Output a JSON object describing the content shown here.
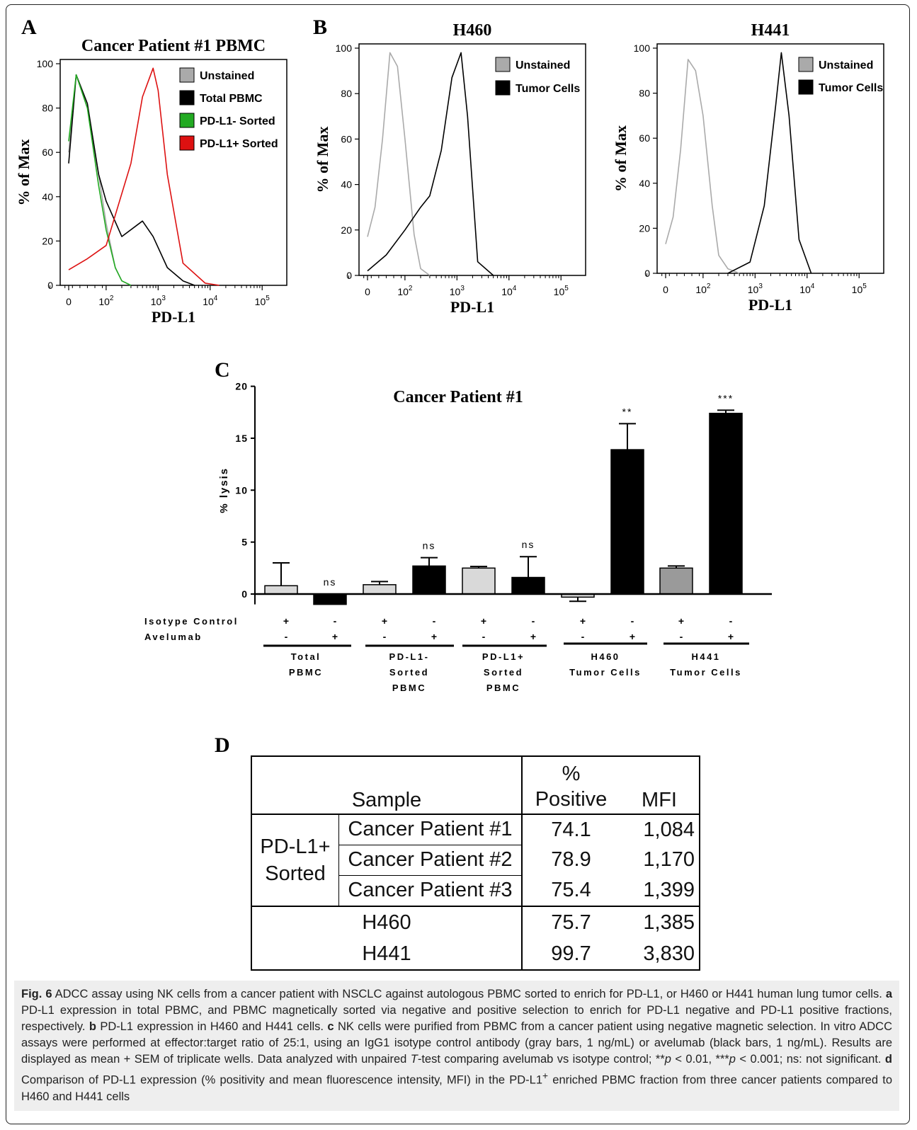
{
  "panels": {
    "a": "A",
    "b": "B",
    "c": "C",
    "d": "D"
  },
  "chart_data": [
    {
      "type": "line",
      "id": "A",
      "title": "Cancer Patient #1 PBMC",
      "xlabel": "PD-L1",
      "ylabel": "% of Max",
      "x_scale": "biexponential",
      "ylim": [
        0,
        100
      ],
      "yticks": [
        "0",
        "20",
        "40",
        "60",
        "80",
        "100"
      ],
      "xticks": [
        {
          "base": "0",
          "exp": ""
        },
        {
          "base": "10",
          "exp": "2"
        },
        {
          "base": "10",
          "exp": "3"
        },
        {
          "base": "10",
          "exp": "4"
        },
        {
          "base": "10",
          "exp": "5"
        }
      ],
      "legend": [
        {
          "name": "Unstained",
          "color": "#aaaaaa"
        },
        {
          "name": "Total PBMC",
          "color": "#000000"
        },
        {
          "name": "PD-L1- Sorted",
          "color": "#22aa22"
        },
        {
          "name": "PD-L1+ Sorted",
          "color": "#dd1111"
        }
      ],
      "series": [
        {
          "name": "Unstained",
          "x": [
            0,
            20,
            50,
            80,
            100,
            150,
            200,
            300
          ],
          "y": [
            60,
            95,
            80,
            50,
            28,
            8,
            2,
            0
          ]
        },
        {
          "name": "Total PBMC",
          "x": [
            0,
            20,
            50,
            80,
            100,
            200,
            500,
            800,
            1500,
            3000,
            5000
          ],
          "y": [
            55,
            95,
            82,
            50,
            38,
            22,
            29,
            22,
            8,
            2,
            0
          ]
        },
        {
          "name": "PD-L1- Sorted",
          "x": [
            0,
            20,
            50,
            80,
            100,
            150,
            200,
            300
          ],
          "y": [
            65,
            95,
            80,
            45,
            25,
            8,
            2,
            0
          ]
        },
        {
          "name": "PD-L1+ Sorted",
          "x": [
            0,
            50,
            100,
            300,
            500,
            800,
            1000,
            1500,
            3000,
            8000,
            15000
          ],
          "y": [
            7,
            12,
            18,
            55,
            85,
            98,
            88,
            50,
            10,
            1,
            0
          ]
        }
      ]
    },
    {
      "type": "line",
      "id": "B1",
      "title": "H460",
      "xlabel": "PD-L1",
      "ylabel": "% of Max",
      "x_scale": "biexponential",
      "ylim": [
        0,
        100
      ],
      "yticks": [
        "0",
        "20",
        "40",
        "60",
        "80",
        "100"
      ],
      "xticks": [
        {
          "base": "0",
          "exp": ""
        },
        {
          "base": "10",
          "exp": "2"
        },
        {
          "base": "10",
          "exp": "3"
        },
        {
          "base": "10",
          "exp": "4"
        },
        {
          "base": "10",
          "exp": "5"
        }
      ],
      "legend": [
        {
          "name": "Unstained",
          "color": "#aaaaaa"
        },
        {
          "name": "Tumor Cells",
          "color": "#000000"
        }
      ],
      "series": [
        {
          "name": "Unstained",
          "x": [
            0,
            20,
            40,
            60,
            80,
            100,
            150,
            200,
            300
          ],
          "y": [
            17,
            30,
            60,
            98,
            92,
            60,
            18,
            3,
            0
          ]
        },
        {
          "name": "Tumor Cells",
          "x": [
            0,
            50,
            100,
            200,
            300,
            500,
            800,
            1200,
            1600,
            2500,
            5000
          ],
          "y": [
            2,
            9,
            20,
            30,
            35,
            55,
            87,
            98,
            70,
            6,
            0
          ]
        }
      ]
    },
    {
      "type": "line",
      "id": "B2",
      "title": "H441",
      "xlabel": "PD-L1",
      "ylabel": "% of Max",
      "x_scale": "biexponential",
      "ylim": [
        0,
        100
      ],
      "yticks": [
        "0",
        "20",
        "40",
        "60",
        "80",
        "100"
      ],
      "xticks": [
        {
          "base": "0",
          "exp": ""
        },
        {
          "base": "10",
          "exp": "2"
        },
        {
          "base": "10",
          "exp": "3"
        },
        {
          "base": "10",
          "exp": "4"
        },
        {
          "base": "10",
          "exp": "5"
        }
      ],
      "legend": [
        {
          "name": "Unstained",
          "color": "#aaaaaa"
        },
        {
          "name": "Tumor Cells",
          "color": "#000000"
        }
      ],
      "series": [
        {
          "name": "Unstained",
          "x": [
            0,
            20,
            40,
            60,
            80,
            100,
            150,
            200,
            300,
            500
          ],
          "y": [
            13,
            25,
            55,
            95,
            90,
            70,
            30,
            8,
            2,
            0
          ]
        },
        {
          "name": "Tumor Cells",
          "x": [
            300,
            800,
            1500,
            2500,
            3200,
            4500,
            7000,
            12000
          ],
          "y": [
            0,
            5,
            30,
            75,
            98,
            70,
            15,
            0
          ]
        }
      ]
    },
    {
      "type": "bar",
      "id": "C",
      "title": "Cancer Patient #1",
      "ylabel": "% lysis",
      "ylim": [
        -1,
        20
      ],
      "yticks": [
        "0",
        "5",
        "10",
        "15",
        "20"
      ],
      "row_labels": [
        "Isotype Control",
        "Avelumab"
      ],
      "groups": [
        {
          "label": [
            "Total",
            "PBMC"
          ]
        },
        {
          "label": [
            "PD-L1-",
            "Sorted",
            "PBMC"
          ]
        },
        {
          "label": [
            "PD-L1+",
            "Sorted",
            "PBMC"
          ]
        },
        {
          "label": [
            "H460",
            "Tumor Cells"
          ]
        },
        {
          "label": [
            "H441",
            "Tumor Cells"
          ]
        }
      ],
      "bars": [
        {
          "group": 0,
          "treatment": "isotype",
          "value": 0.8,
          "sem": 2.2,
          "color": "#d9d9d9",
          "isotype": "+",
          "avelumab": "-",
          "sig": ""
        },
        {
          "group": 0,
          "treatment": "avelumab",
          "value": -1.0,
          "sem": 0,
          "color": "#000000",
          "isotype": "-",
          "avelumab": "+",
          "sig": "ns"
        },
        {
          "group": 1,
          "treatment": "isotype",
          "value": 0.9,
          "sem": 0.3,
          "color": "#d9d9d9",
          "isotype": "+",
          "avelumab": "-",
          "sig": ""
        },
        {
          "group": 1,
          "treatment": "avelumab",
          "value": 2.7,
          "sem": 0.8,
          "color": "#000000",
          "isotype": "-",
          "avelumab": "+",
          "sig": "ns"
        },
        {
          "group": 2,
          "treatment": "isotype",
          "value": 2.5,
          "sem": 0.15,
          "color": "#d9d9d9",
          "isotype": "+",
          "avelumab": "-",
          "sig": ""
        },
        {
          "group": 2,
          "treatment": "avelumab",
          "value": 1.6,
          "sem": 2.0,
          "color": "#000000",
          "isotype": "-",
          "avelumab": "+",
          "sig": "ns"
        },
        {
          "group": 3,
          "treatment": "isotype",
          "value": -0.3,
          "sem": 0.4,
          "color": "#d9d9d9",
          "isotype": "+",
          "avelumab": "-",
          "sig": ""
        },
        {
          "group": 3,
          "treatment": "avelumab",
          "value": 13.9,
          "sem": 2.5,
          "color": "#000000",
          "isotype": "-",
          "avelumab": "+",
          "sig": "**"
        },
        {
          "group": 4,
          "treatment": "isotype",
          "value": 2.5,
          "sem": 0.2,
          "color": "#9a9a9a",
          "isotype": "+",
          "avelumab": "-",
          "sig": ""
        },
        {
          "group": 4,
          "treatment": "avelumab",
          "value": 17.4,
          "sem": 0.3,
          "color": "#000000",
          "isotype": "-",
          "avelumab": "+",
          "sig": "***"
        }
      ]
    },
    {
      "type": "table",
      "id": "D",
      "header": {
        "sample": "Sample",
        "pct_top": "%",
        "pct_bottom": "Positive",
        "mfi": "MFI"
      },
      "group_label": [
        "PD-L1+",
        "Sorted"
      ],
      "rows": [
        {
          "sample": "Cancer Patient #1",
          "pct": "74.1",
          "mfi": "1,084"
        },
        {
          "sample": "Cancer Patient #2",
          "pct": "78.9",
          "mfi": "1,170"
        },
        {
          "sample": "Cancer Patient #3",
          "pct": "75.4",
          "mfi": "1,399"
        },
        {
          "sample": "H460",
          "pct": "75.7",
          "mfi": "1,385"
        },
        {
          "sample": "H441",
          "pct": "99.7",
          "mfi": "3,830"
        }
      ]
    }
  ],
  "caption": {
    "fig": "Fig. 6",
    "t1": " ADCC assay using NK cells from a cancer patient with NSCLC against autologous PBMC sorted to enrich for PD-L1, or H460 or H441 human lung tumor cells. ",
    "a": "a",
    "t2": " PD-L1 expression in total PBMC, and PBMC magnetically sorted via negative and positive selection to enrich for PD-L1 negative and PD-L1 positive fractions, respectively. ",
    "b": "b",
    "t3": " PD-L1 expression in H460 and H441 cells. ",
    "c": "c",
    "t4": " NK cells were purified from PBMC from a cancer patient using negative magnetic selection. In vitro ADCC assays were performed at effector:target ratio of 25:1, using an IgG1 isotype control antibody (gray bars, 1 ng/mL) or avelumab (black bars, 1 ng/mL). Results are displayed as mean + SEM of triplicate wells. Data analyzed with unpaired ",
    "ttest": "T",
    "t5": "-test comparing avelumab vs isotype control; **",
    "p1": "p",
    "t6": " < 0.01, ***",
    "p2": "p",
    "t7": " < 0.001; ns: not significant. ",
    "d": "d",
    "t8": " Comparison of PD-L1 expression (% positivity and mean fluorescence intensity, MFI) in the PD-L1",
    "sup": "+",
    "t9": " enriched PBMC fraction from three cancer patients compared to H460 and H441 cells"
  }
}
